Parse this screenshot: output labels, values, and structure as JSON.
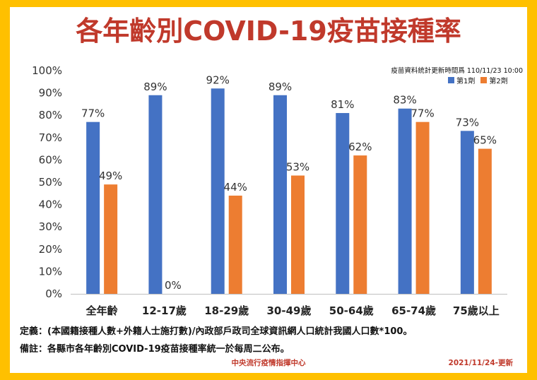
{
  "title": "各年齡別COVID-19疫苗接種率",
  "update_note": "疫苗資料統計更新時間爲 110/11/23 10:00",
  "footnotes": {
    "definition": "定義：(本國籍接種人數+外籍人士施打數)/內政部戶政司全球資訊網人口統計我國人口數*100。",
    "remark": "備註：各縣市各年齡別COVID-19疫苗接種率統一於每周二公布。"
  },
  "source": "中央流行疫情指揮中心",
  "update_date": "2021/11/24-更新",
  "colors": {
    "frame": "#FFC000",
    "title": "#C0392B",
    "dose1": "#4472C4",
    "dose2": "#ED7D31"
  },
  "chart_data": {
    "type": "bar",
    "categories": [
      "全年齡",
      "12-17歲",
      "18-29歲",
      "30-49歲",
      "50-64歲",
      "65-74歲",
      "75歲以上"
    ],
    "series": [
      {
        "name": "第1劑",
        "values": [
          77,
          89,
          92,
          89,
          81,
          83,
          73
        ],
        "labels": [
          "77%",
          "89%",
          "92%",
          "89%",
          "81%",
          "83%",
          "73%"
        ]
      },
      {
        "name": "第2劑",
        "values": [
          49,
          0,
          44,
          53,
          62,
          77,
          65
        ],
        "labels": [
          "49%",
          "0%",
          "44%",
          "53%",
          "62%",
          "77%",
          "65%"
        ]
      }
    ],
    "ylim": [
      0,
      100
    ],
    "y_ticks": [
      "0%",
      "10%",
      "20%",
      "30%",
      "40%",
      "50%",
      "60%",
      "70%",
      "80%",
      "90%",
      "100%"
    ],
    "grid": false,
    "legend": "top-right"
  }
}
